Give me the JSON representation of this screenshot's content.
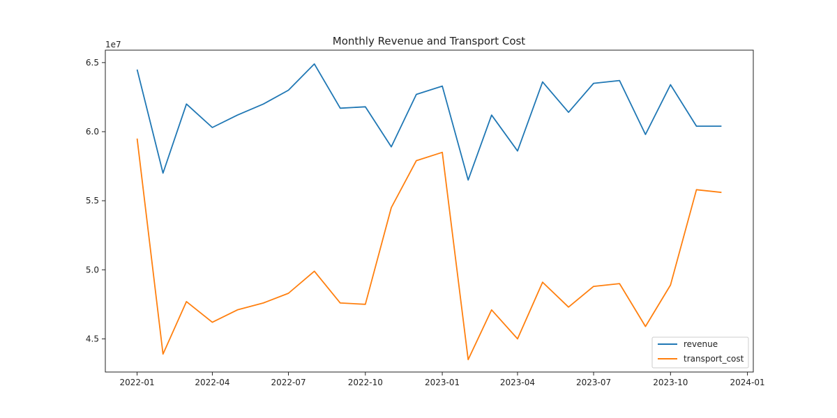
{
  "chart_data": {
    "type": "line",
    "title": "Monthly Revenue and Transport Cost",
    "xlabel": "",
    "ylabel": "",
    "y_offset_label": "1e7",
    "x": [
      "2022-01",
      "2022-02",
      "2022-03",
      "2022-04",
      "2022-05",
      "2022-06",
      "2022-07",
      "2022-08",
      "2022-09",
      "2022-10",
      "2022-11",
      "2022-12",
      "2023-01",
      "2023-02",
      "2023-03",
      "2023-04",
      "2023-05",
      "2023-06",
      "2023-07",
      "2023-08",
      "2023-09",
      "2023-10",
      "2023-11",
      "2023-12"
    ],
    "series": [
      {
        "name": "revenue",
        "color": "#1f77b4",
        "values": [
          6.45,
          5.7,
          6.2,
          6.03,
          6.12,
          6.2,
          6.3,
          6.49,
          6.17,
          6.18,
          5.89,
          6.27,
          6.33,
          5.65,
          6.12,
          5.86,
          6.36,
          6.14,
          6.35,
          6.37,
          5.98,
          6.34,
          6.04,
          6.04
        ]
      },
      {
        "name": "transport_cost",
        "color": "#ff7f0e",
        "values": [
          5.95,
          4.39,
          4.77,
          4.62,
          4.71,
          4.76,
          4.83,
          4.99,
          4.76,
          4.75,
          5.45,
          5.79,
          5.85,
          4.35,
          4.71,
          4.5,
          4.91,
          4.73,
          4.88,
          4.9,
          4.59,
          4.89,
          5.58,
          5.56
        ]
      }
    ],
    "xticks": [
      "2022-01",
      "2022-04",
      "2022-07",
      "2022-10",
      "2023-01",
      "2023-04",
      "2023-07",
      "2023-10",
      "2024-01"
    ],
    "yticks": [
      4.5,
      5.0,
      5.5,
      6.0,
      6.5
    ],
    "ytick_labels": [
      "4.5",
      "5.0",
      "5.5",
      "6.0",
      "6.5"
    ],
    "x_range": [
      "2021-11-24",
      "2024-01-08"
    ],
    "ylim": [
      4.26,
      6.59
    ],
    "grid": false,
    "legend_position": "lower-right"
  }
}
